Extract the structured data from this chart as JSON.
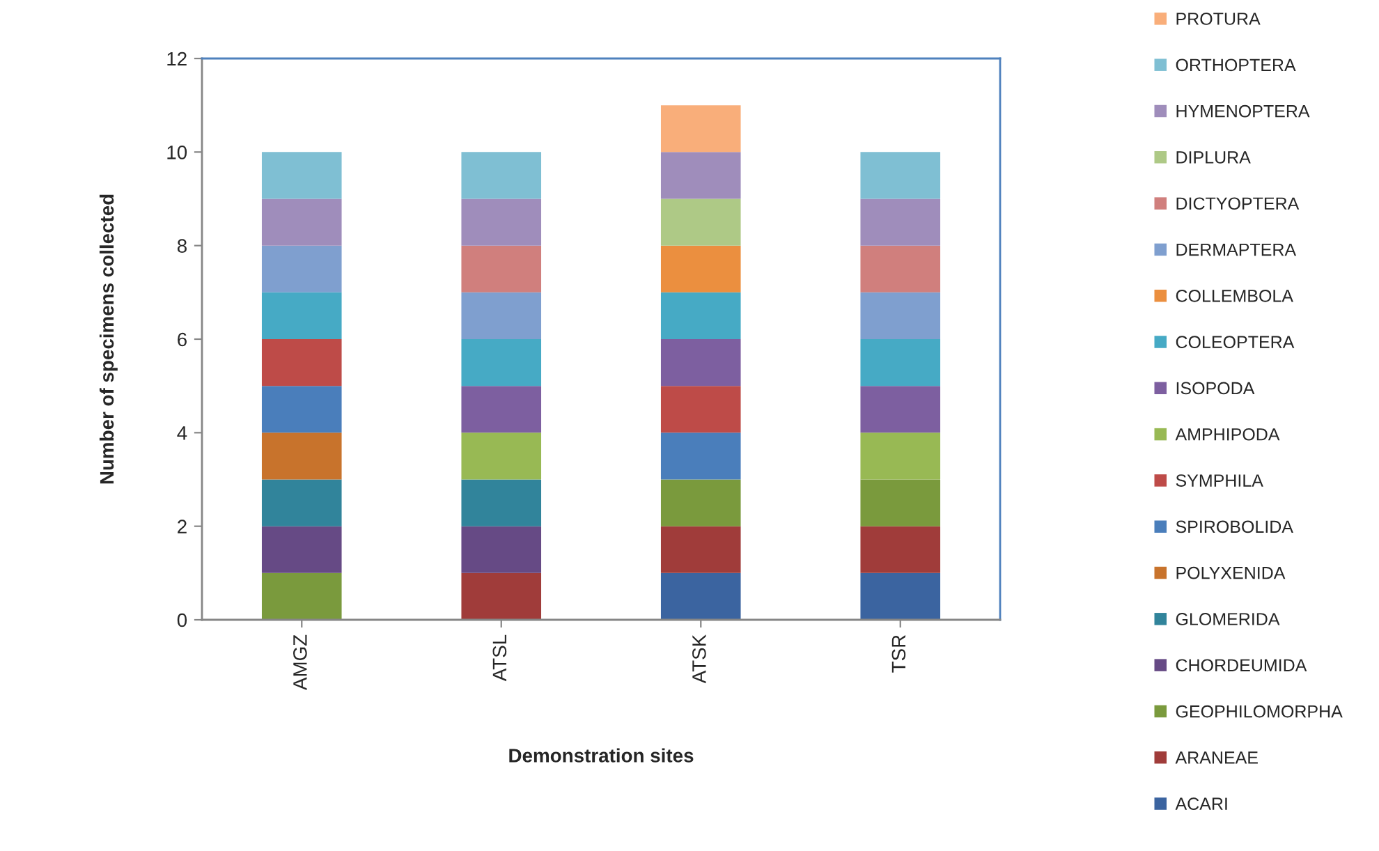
{
  "chart_data": {
    "type": "bar",
    "stacked": true,
    "xlabel": "Demonstration sites",
    "ylabel": "Number of specimens collected",
    "categories": [
      "AMGZ",
      "ATSL",
      "ATSK",
      "TSR"
    ],
    "ylim": [
      0,
      12
    ],
    "yticks": [
      0,
      2,
      4,
      6,
      8,
      10,
      12
    ],
    "grid": false,
    "legend": "right",
    "series": [
      {
        "name": "ACARI",
        "color": "#3b64a0",
        "values": [
          null,
          null,
          1,
          1
        ]
      },
      {
        "name": "ARANEAE",
        "color": "#a03c3a",
        "values": [
          null,
          1,
          1,
          1
        ]
      },
      {
        "name": "GEOPHILOMORPHA",
        "color": "#7a9a3d",
        "values": [
          1,
          null,
          1,
          1
        ]
      },
      {
        "name": "CHORDEUMIDA",
        "color": "#664a85",
        "values": [
          1,
          1,
          null,
          null
        ]
      },
      {
        "name": "GLOMERIDA",
        "color": "#31849b",
        "values": [
          1,
          1,
          null,
          null
        ]
      },
      {
        "name": "POLYXENIDA",
        "color": "#c8732c",
        "values": [
          1,
          null,
          null,
          null
        ]
      },
      {
        "name": "SPIROBOLIDA",
        "color": "#4a7ebb",
        "values": [
          1,
          null,
          1,
          null
        ]
      },
      {
        "name": "SYMPHILA",
        "color": "#be4b48",
        "values": [
          1,
          null,
          1,
          null
        ]
      },
      {
        "name": "AMPHIPODA",
        "color": "#98b954",
        "values": [
          null,
          1,
          null,
          1
        ]
      },
      {
        "name": "ISOPODA",
        "color": "#7d5fa0",
        "values": [
          null,
          1,
          1,
          1
        ]
      },
      {
        "name": "COLEOPTERA",
        "color": "#46aac5",
        "values": [
          1,
          1,
          1,
          1
        ]
      },
      {
        "name": "COLLEMBOLA",
        "color": "#eb8f3f",
        "values": [
          null,
          null,
          1,
          null
        ]
      },
      {
        "name": "DERMAPTERA",
        "color": "#7f9fcf",
        "values": [
          1,
          1,
          null,
          1
        ]
      },
      {
        "name": "DICTYOPTERA",
        "color": "#d07f7d",
        "values": [
          null,
          1,
          null,
          1
        ]
      },
      {
        "name": "DIPLURA",
        "color": "#aec986",
        "values": [
          null,
          null,
          1,
          null
        ]
      },
      {
        "name": "HYMENOPTERA",
        "color": "#9f8dbb",
        "values": [
          1,
          1,
          1,
          1
        ]
      },
      {
        "name": "ORTHOPTERA",
        "color": "#7fbfd3",
        "values": [
          1,
          1,
          null,
          1
        ]
      },
      {
        "name": "PROTURA",
        "color": "#f9ae7a",
        "values": [
          null,
          null,
          1,
          null
        ]
      }
    ]
  }
}
